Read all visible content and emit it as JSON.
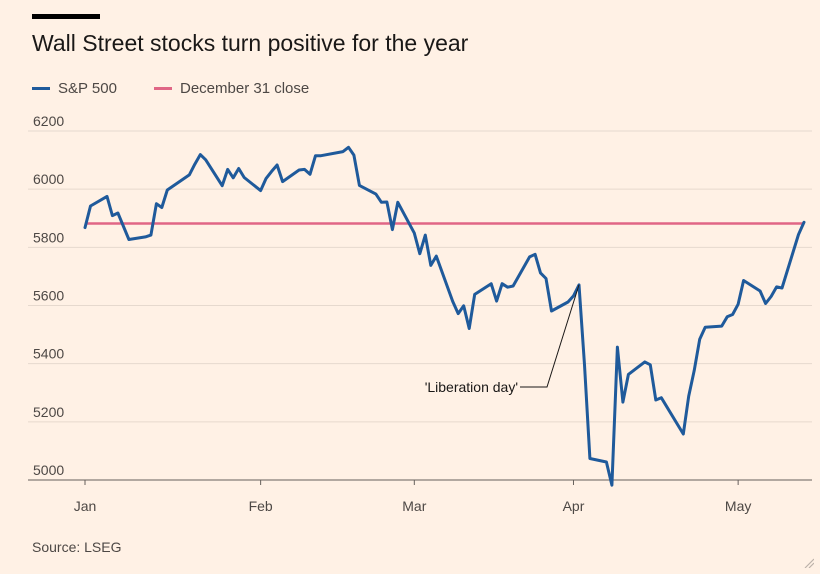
{
  "header": {
    "title": "Wall Street stocks turn positive for the year"
  },
  "legend": {
    "items": [
      {
        "label": "S&P 500",
        "color": "#1f5a9b"
      },
      {
        "label": "December 31 close",
        "color": "#e06685"
      }
    ]
  },
  "footer": {
    "source": "Source: LSEG"
  },
  "chart_data": {
    "type": "line",
    "title": "Wall Street stocks turn positive for the year",
    "xlabel": "",
    "ylabel": "",
    "ylim": [
      5000,
      6200
    ],
    "yticks": [
      5000,
      5200,
      5400,
      5600,
      5800,
      6000,
      6200
    ],
    "xticks": [
      {
        "label": "Jan",
        "date": "2025-01-02"
      },
      {
        "label": "Feb",
        "date": "2025-02-03"
      },
      {
        "label": "Mar",
        "date": "2025-03-03"
      },
      {
        "label": "Apr",
        "date": "2025-04-01"
      },
      {
        "label": "May",
        "date": "2025-05-01"
      }
    ],
    "grid": "horizontal",
    "legend_position": "top-left",
    "series": [
      {
        "name": "S&P 500",
        "color": "#1f5a9b",
        "points": [
          [
            "2025-01-02",
            5868
          ],
          [
            "2025-01-03",
            5942
          ],
          [
            "2025-01-06",
            5975
          ],
          [
            "2025-01-07",
            5909
          ],
          [
            "2025-01-08",
            5918
          ],
          [
            "2025-01-10",
            5827
          ],
          [
            "2025-01-13",
            5836
          ],
          [
            "2025-01-14",
            5842
          ],
          [
            "2025-01-15",
            5950
          ],
          [
            "2025-01-16",
            5937
          ],
          [
            "2025-01-17",
            5997
          ],
          [
            "2025-01-21",
            6049
          ],
          [
            "2025-01-22",
            6086
          ],
          [
            "2025-01-23",
            6119
          ],
          [
            "2025-01-24",
            6101
          ],
          [
            "2025-01-27",
            6012
          ],
          [
            "2025-01-28",
            6068
          ],
          [
            "2025-01-29",
            6039
          ],
          [
            "2025-01-30",
            6071
          ],
          [
            "2025-01-31",
            6040
          ],
          [
            "2025-02-03",
            5995
          ],
          [
            "2025-02-04",
            6037
          ],
          [
            "2025-02-05",
            6061
          ],
          [
            "2025-02-06",
            6083
          ],
          [
            "2025-02-07",
            6026
          ],
          [
            "2025-02-10",
            6066
          ],
          [
            "2025-02-11",
            6068
          ],
          [
            "2025-02-12",
            6051
          ],
          [
            "2025-02-13",
            6115
          ],
          [
            "2025-02-14",
            6115
          ],
          [
            "2025-02-18",
            6129
          ],
          [
            "2025-02-19",
            6144
          ],
          [
            "2025-02-20",
            6117
          ],
          [
            "2025-02-21",
            6013
          ],
          [
            "2025-02-24",
            5983
          ],
          [
            "2025-02-25",
            5955
          ],
          [
            "2025-02-26",
            5956
          ],
          [
            "2025-02-27",
            5861
          ],
          [
            "2025-02-28",
            5955
          ],
          [
            "2025-03-03",
            5849
          ],
          [
            "2025-03-04",
            5778
          ],
          [
            "2025-03-05",
            5842
          ],
          [
            "2025-03-06",
            5738
          ],
          [
            "2025-03-07",
            5770
          ],
          [
            "2025-03-10",
            5614
          ],
          [
            "2025-03-11",
            5572
          ],
          [
            "2025-03-12",
            5599
          ],
          [
            "2025-03-13",
            5521
          ],
          [
            "2025-03-14",
            5638
          ],
          [
            "2025-03-17",
            5675
          ],
          [
            "2025-03-18",
            5615
          ],
          [
            "2025-03-19",
            5675
          ],
          [
            "2025-03-20",
            5663
          ],
          [
            "2025-03-21",
            5667
          ],
          [
            "2025-03-24",
            5767
          ],
          [
            "2025-03-25",
            5776
          ],
          [
            "2025-03-26",
            5712
          ],
          [
            "2025-03-27",
            5693
          ],
          [
            "2025-03-28",
            5581
          ],
          [
            "2025-03-31",
            5612
          ],
          [
            "2025-04-01",
            5633
          ],
          [
            "2025-04-02",
            5671
          ],
          [
            "2025-04-03",
            5396
          ],
          [
            "2025-04-04",
            5074
          ],
          [
            "2025-04-07",
            5062
          ],
          [
            "2025-04-08",
            4982
          ],
          [
            "2025-04-09",
            5457
          ],
          [
            "2025-04-10",
            5268
          ],
          [
            "2025-04-11",
            5363
          ],
          [
            "2025-04-14",
            5406
          ],
          [
            "2025-04-15",
            5396
          ],
          [
            "2025-04-16",
            5275
          ],
          [
            "2025-04-17",
            5283
          ],
          [
            "2025-04-21",
            5158
          ],
          [
            "2025-04-22",
            5288
          ],
          [
            "2025-04-23",
            5376
          ],
          [
            "2025-04-24",
            5484
          ],
          [
            "2025-04-25",
            5525
          ],
          [
            "2025-04-28",
            5529
          ],
          [
            "2025-04-29",
            5561
          ],
          [
            "2025-04-30",
            5569
          ],
          [
            "2025-05-01",
            5604
          ],
          [
            "2025-05-02",
            5686
          ],
          [
            "2025-05-05",
            5650
          ],
          [
            "2025-05-06",
            5607
          ],
          [
            "2025-05-07",
            5631
          ],
          [
            "2025-05-08",
            5664
          ],
          [
            "2025-05-09",
            5660
          ],
          [
            "2025-05-12",
            5844
          ],
          [
            "2025-05-13",
            5886
          ]
        ]
      },
      {
        "name": "December 31 close",
        "color": "#e06685",
        "value": 5882
      }
    ],
    "annotations": [
      {
        "text": "'Liberation day'",
        "date": "2025-04-02",
        "value": 5671
      }
    ]
  }
}
